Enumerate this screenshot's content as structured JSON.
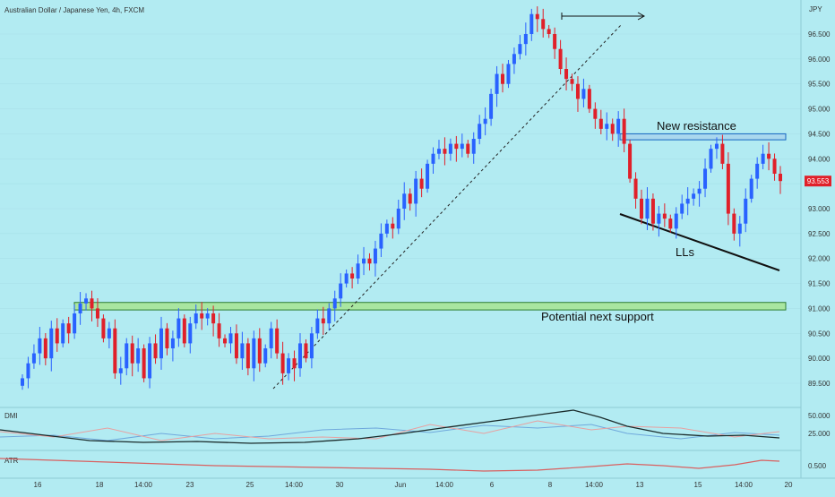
{
  "header": {
    "title": "Australian Dollar / Japanese Yen, 4h, FXCM"
  },
  "colors": {
    "background": "#b2ebf2",
    "up": "#2962ff",
    "down": "#e0202a",
    "price_tag": "#e0202a",
    "support_zone": "#a9e6a0",
    "resistance_zone": "#a9d7ee",
    "dmi_line": "#1a2b2b",
    "dmi_plus": "#6fa8dc",
    "dmi_minus": "#e8a0a0",
    "atr_line": "#d96060"
  },
  "chart_data": {
    "type": "candlestick",
    "symbol": "AUD/JPY",
    "timeframe": "4h",
    "currency_label": "JPY",
    "last_price": "93.553",
    "y_ticks": [
      "96.500",
      "96.000",
      "95.500",
      "95.000",
      "94.500",
      "94.000",
      "93.500",
      "93.000",
      "92.500",
      "92.000",
      "91.500",
      "91.000",
      "90.500",
      "90.000",
      "89.500"
    ],
    "ylim": [
      89.1,
      97.1
    ],
    "x_ticks": [
      "16",
      "18",
      "14:00",
      "23",
      "25",
      "14:00",
      "30",
      "Jun",
      "14:00",
      "6",
      "8",
      "14:00",
      "13",
      "15",
      "14:00",
      "20"
    ],
    "closes": [
      89.6,
      89.9,
      90.1,
      90.4,
      90.0,
      90.6,
      90.3,
      90.7,
      90.5,
      90.9,
      91.1,
      91.2,
      91.0,
      90.8,
      90.4,
      90.6,
      89.7,
      89.8,
      90.3,
      89.9,
      90.2,
      89.6,
      90.3,
      90.0,
      90.6,
      90.2,
      90.4,
      90.8,
      90.3,
      90.7,
      90.9,
      90.8,
      90.9,
      90.7,
      90.4,
      90.3,
      90.5,
      90.0,
      90.3,
      89.8,
      90.4,
      89.9,
      90.2,
      90.6,
      90.1,
      89.7,
      90.0,
      89.8,
      90.3,
      90.0,
      90.5,
      90.8,
      90.7,
      91.0,
      91.2,
      91.5,
      91.7,
      91.6,
      91.9,
      92.0,
      91.9,
      92.2,
      92.5,
      92.7,
      92.6,
      93.0,
      93.3,
      93.1,
      93.6,
      93.4,
      93.9,
      94.1,
      94.2,
      94.1,
      94.3,
      94.2,
      94.3,
      94.1,
      94.4,
      94.7,
      94.8,
      95.3,
      95.7,
      95.5,
      95.9,
      96.1,
      96.3,
      96.5,
      96.9,
      96.8,
      96.6,
      96.5,
      96.2,
      95.8,
      95.6,
      95.5,
      95.2,
      95.4,
      95.0,
      94.8,
      94.6,
      94.7,
      94.5,
      94.8,
      94.3,
      93.6,
      93.2,
      92.8,
      93.2,
      92.7,
      92.9,
      92.8,
      92.6,
      92.9,
      93.1,
      93.2,
      93.3,
      93.4,
      93.8,
      94.2,
      94.3,
      93.9,
      92.9,
      92.5,
      92.7,
      93.2,
      93.6,
      93.9,
      94.1,
      94.0,
      93.7,
      93.553
    ],
    "support_zone": {
      "label": "Potential next support",
      "low": 90.97,
      "high": 91.12
    },
    "resistance_zone": {
      "label": "New resistance",
      "low": 94.38,
      "high": 94.5
    },
    "annotations": {
      "lower_lows": "LLs"
    },
    "indicators": {
      "dmi": {
        "label": "DMI",
        "ticks": [
          "50.000",
          "25.000"
        ],
        "ylim": [
          0,
          60
        ]
      },
      "atr": {
        "label": "ATR",
        "ticks": [
          "0.500"
        ],
        "ylim": [
          0.3,
          0.8
        ]
      }
    }
  }
}
